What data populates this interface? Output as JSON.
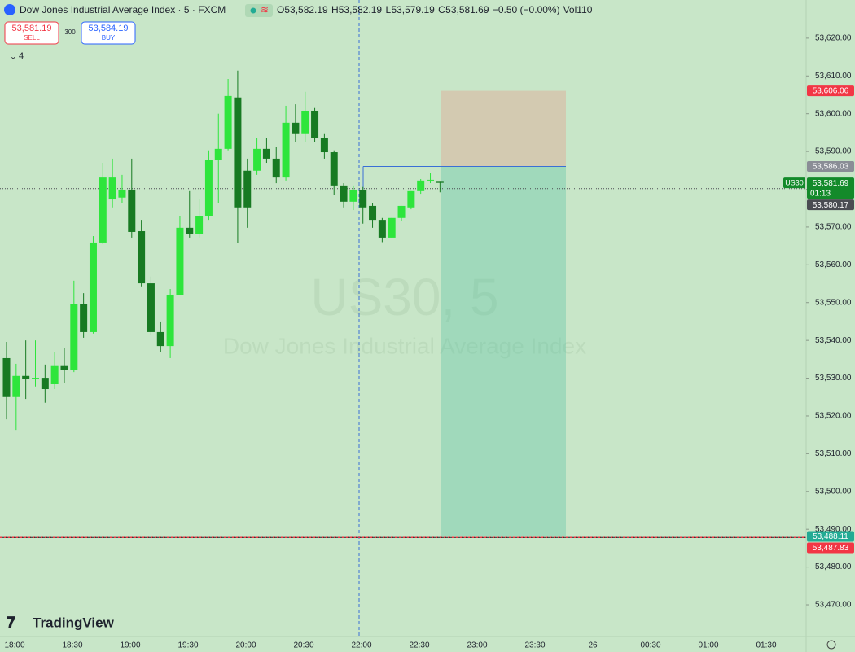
{
  "chart_data": {
    "type": "candlestick",
    "header": {
      "title": "Dow Jones Industrial Average Index · 5 · FXCM",
      "ohlc": [
        {
          "key": "O",
          "text": "53,582.19"
        },
        {
          "key": "H",
          "text": "53,582.19"
        },
        {
          "key": "L",
          "text": "53,579.19"
        },
        {
          "key": "C",
          "text": "53,581.69"
        }
      ],
      "change": "−0.50 (−0.00%)",
      "volume_key": "Vol",
      "volume": "110"
    },
    "trade": {
      "sell_price": "53,581.19",
      "sell": "SELL",
      "spread": "300",
      "buy_price": "53,584.19",
      "buy": "BUY"
    },
    "indicator_count": "4",
    "watermark": {
      "symbol": "US30, 5",
      "name": "Dow Jones Industrial Average Index"
    },
    "logo": "TradingView",
    "up_color": "#2ee53c",
    "down_color": "#177a22",
    "open": [
      53535.3,
      53525.0,
      53530.6,
      53529.9,
      53530.1,
      53528.4,
      53533.2,
      53532.1,
      53549.7,
      53542.2,
      53565.9,
      53577.3,
      53577.8,
      53579.9,
      53568.9,
      53555.1,
      53542.2,
      53538.5,
      53552.1,
      53569.8,
      53568.1,
      53573.0,
      53587.7,
      53590.7,
      53604.3,
      53584.9,
      53584.9,
      53590.7,
      53588.1,
      53583.1,
      53597.6,
      53594.6,
      53600.8,
      53593.5,
      53589.8,
      53581.0,
      53576.7,
      53579.9,
      53575.6,
      53571.9,
      53567.2,
      53572.4,
      53575.2,
      53579.5,
      53582.3,
      53582.19
    ],
    "high": [
      53539.6,
      53533.8,
      53540.0,
      53540.0,
      53533.6,
      53537.0,
      53537.9,
      53555.8,
      53552.5,
      53567.6,
      53587.0,
      53588.1,
      53583.8,
      53588.1,
      53571.9,
      53556.9,
      53545.0,
      53553.6,
      53573.0,
      53579.5,
      53577.3,
      53590.3,
      53600.0,
      53609.2,
      53611.4,
      53588.1,
      53593.5,
      53593.5,
      53591.3,
      53602.1,
      53602.5,
      53605.8,
      53601.5,
      53594.6,
      53590.3,
      53581.6,
      53581.0,
      53580.6,
      53576.3,
      53572.4,
      53572.4,
      53575.6,
      53579.5,
      53582.7,
      53584.2,
      53582.19
    ],
    "low": [
      53519.1,
      53516.3,
      53524.5,
      53527.8,
      53523.5,
      53527.1,
      53528.8,
      53531.6,
      53540.7,
      53541.8,
      53565.5,
      53575.2,
      53576.3,
      53567.2,
      53554.3,
      53541.3,
      53537.0,
      53535.3,
      53552.1,
      53567.2,
      53567.2,
      53571.9,
      53576.3,
      53590.3,
      53565.9,
      53569.8,
      53583.8,
      53587.0,
      53581.6,
      53582.3,
      53592.4,
      53592.4,
      53592.4,
      53588.1,
      53578.4,
      53575.2,
      53574.5,
      53570.9,
      53569.8,
      53566.0,
      53567.0,
      53571.5,
      53574.7,
      53578.8,
      53581.6,
      53579.19
    ],
    "close": [
      53525.0,
      53530.6,
      53529.9,
      53530.1,
      53527.1,
      53533.2,
      53532.1,
      53549.7,
      53542.2,
      53565.9,
      53583.1,
      53583.1,
      53579.9,
      53568.7,
      53555.1,
      53542.2,
      53538.5,
      53552.1,
      53569.8,
      53568.1,
      53573.0,
      53587.7,
      53590.7,
      53604.7,
      53575.2,
      53575.2,
      53590.7,
      53588.1,
      53583.1,
      53597.6,
      53594.6,
      53600.8,
      53593.5,
      53589.8,
      53581.0,
      53576.7,
      53579.9,
      53575.2,
      53571.9,
      53567.2,
      53572.4,
      53575.6,
      53579.5,
      53582.3,
      53582.5,
      53581.69
    ],
    "ylim": [
      53461.6,
      53630.1
    ],
    "yticks": [
      {
        "value": 53470,
        "label": "53,470.00"
      },
      {
        "value": 53480,
        "label": "53,480.00"
      },
      {
        "value": 53490,
        "label": "53,490.00"
      },
      {
        "value": 53500,
        "label": "53,500.00"
      },
      {
        "value": 53510,
        "label": "53,510.00"
      },
      {
        "value": 53520,
        "label": "53,520.00"
      },
      {
        "value": 53530,
        "label": "53,530.00"
      },
      {
        "value": 53540,
        "label": "53,540.00"
      },
      {
        "value": 53550,
        "label": "53,550.00"
      },
      {
        "value": 53560,
        "label": "53,560.00"
      },
      {
        "value": 53570,
        "label": "53,570.00"
      },
      {
        "value": 53580,
        "label": "53,580.00"
      },
      {
        "value": 53590,
        "label": "53,590.00"
      },
      {
        "value": 53600,
        "label": "53,600.00"
      },
      {
        "value": 53610,
        "label": "53,610.00"
      },
      {
        "value": 53620,
        "label": "53,620.00"
      }
    ],
    "x_axis_labels": [
      "18:00",
      "18:30",
      "19:00",
      "19:30",
      "20:00",
      "20:30",
      "22:00",
      "22:30",
      "23:00",
      "23:30",
      "26",
      "00:30",
      "01:00",
      "01:30"
    ],
    "price_tags": [
      {
        "value": 53606.06,
        "label": "53,606.06",
        "color": "#f23645"
      },
      {
        "value": 53586.03,
        "label": "53,586.03",
        "color": "#8a8d96"
      },
      {
        "value": 53581.69,
        "label": "53,581.69",
        "color": "#138a2a",
        "countdown": "01:13",
        "symbol": "US30"
      },
      {
        "value": 53580.17,
        "label": "53,580.17",
        "color": "#4a4c52"
      },
      {
        "value": 53488.11,
        "label": "53,488.11",
        "color": "#22ab94"
      },
      {
        "value": 53487.83,
        "label": "53,487.83",
        "color": "#f23645"
      }
    ]
  }
}
